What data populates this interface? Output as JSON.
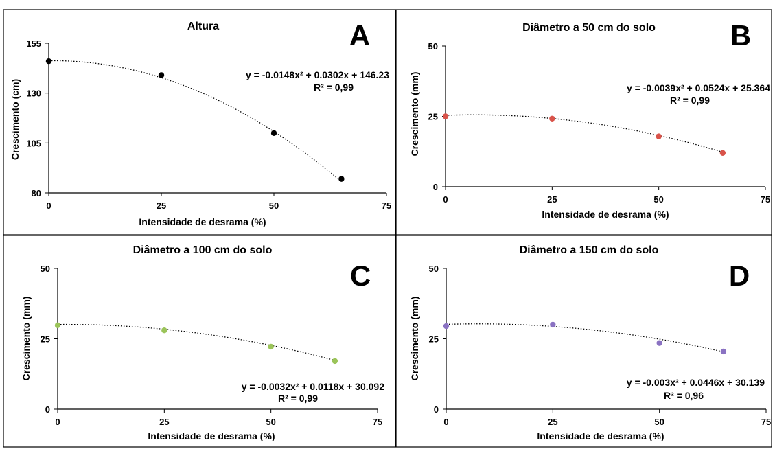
{
  "chart_data": [
    {
      "type": "scatter",
      "panel": "A",
      "title": "Altura",
      "xlabel": "Intensidade de desrama (%)",
      "ylabel": "Crescimento (cm)",
      "x": [
        0,
        25,
        50,
        65
      ],
      "y": [
        146,
        139,
        110,
        87
      ],
      "xlim": [
        0,
        75
      ],
      "ylim": [
        80,
        155
      ],
      "xticks": [
        "0",
        "25",
        "50",
        "75"
      ],
      "yticks": [
        "80",
        "105",
        "130",
        "155"
      ],
      "marker_color": "#000000",
      "trendline": {
        "type": "polynomial",
        "coef": [
          -0.0148,
          0.0302,
          146.23
        ],
        "style": "dotted"
      },
      "equation": "y = -0.0148x² + 0.0302x + 146.23",
      "r2": "R² = 0,99",
      "grid": false,
      "legend": "none"
    },
    {
      "type": "scatter",
      "panel": "B",
      "title": "Diâmetro a 50 cm do solo",
      "xlabel": "Intensidade de desrama (%)",
      "ylabel": "Crescimento (mm)",
      "x": [
        0,
        25,
        50,
        65
      ],
      "y": [
        25,
        24.2,
        17.9,
        12
      ],
      "xlim": [
        0,
        75
      ],
      "ylim": [
        0,
        50
      ],
      "xticks": [
        "0",
        "25",
        "50",
        "75"
      ],
      "yticks": [
        "0",
        "25",
        "50"
      ],
      "marker_color": "#d9534a",
      "trendline": {
        "type": "polynomial",
        "coef": [
          -0.0039,
          0.0524,
          25.364
        ],
        "style": "dotted"
      },
      "equation": "y = -0.0039x² + 0.0524x + 25.364",
      "r2": "R² = 0,99",
      "grid": false,
      "legend": "none"
    },
    {
      "type": "scatter",
      "panel": "C",
      "title": "Diâmetro a 100 cm do solo",
      "xlabel": "Intensidade de desrama (%)",
      "ylabel": "Crescimento (mm)",
      "x": [
        0,
        25,
        50,
        65
      ],
      "y": [
        29.8,
        28,
        22.2,
        17.1
      ],
      "xlim": [
        0,
        75
      ],
      "ylim": [
        0,
        50
      ],
      "xticks": [
        "0",
        "25",
        "50",
        "75"
      ],
      "yticks": [
        "0",
        "25",
        "50"
      ],
      "marker_color": "#9bc459",
      "trendline": {
        "type": "polynomial",
        "coef": [
          -0.0032,
          0.0118,
          30.092
        ],
        "style": "dotted"
      },
      "equation": "y = -0.0032x² + 0.0118x + 30.092",
      "r2": "R² = 0,99",
      "grid": false,
      "legend": "none"
    },
    {
      "type": "scatter",
      "panel": "D",
      "title": "Diâmetro a 150 cm do solo",
      "xlabel": "Intensidade de desrama (%)",
      "ylabel": "Crescimento (mm)",
      "x": [
        0,
        25,
        50,
        65
      ],
      "y": [
        29.5,
        30,
        23.5,
        20.5
      ],
      "xlim": [
        0,
        75
      ],
      "ylim": [
        0,
        50
      ],
      "xticks": [
        "0",
        "25",
        "50",
        "75"
      ],
      "yticks": [
        "0",
        "25",
        "50"
      ],
      "marker_color": "#8a72c2",
      "trendline": {
        "type": "polynomial",
        "coef": [
          -0.003,
          0.0446,
          30.139
        ],
        "style": "dotted"
      },
      "equation": "y = -0.003x² + 0.0446x + 30.139",
      "r2": "R² = 0,96",
      "grid": false,
      "legend": "none"
    }
  ]
}
